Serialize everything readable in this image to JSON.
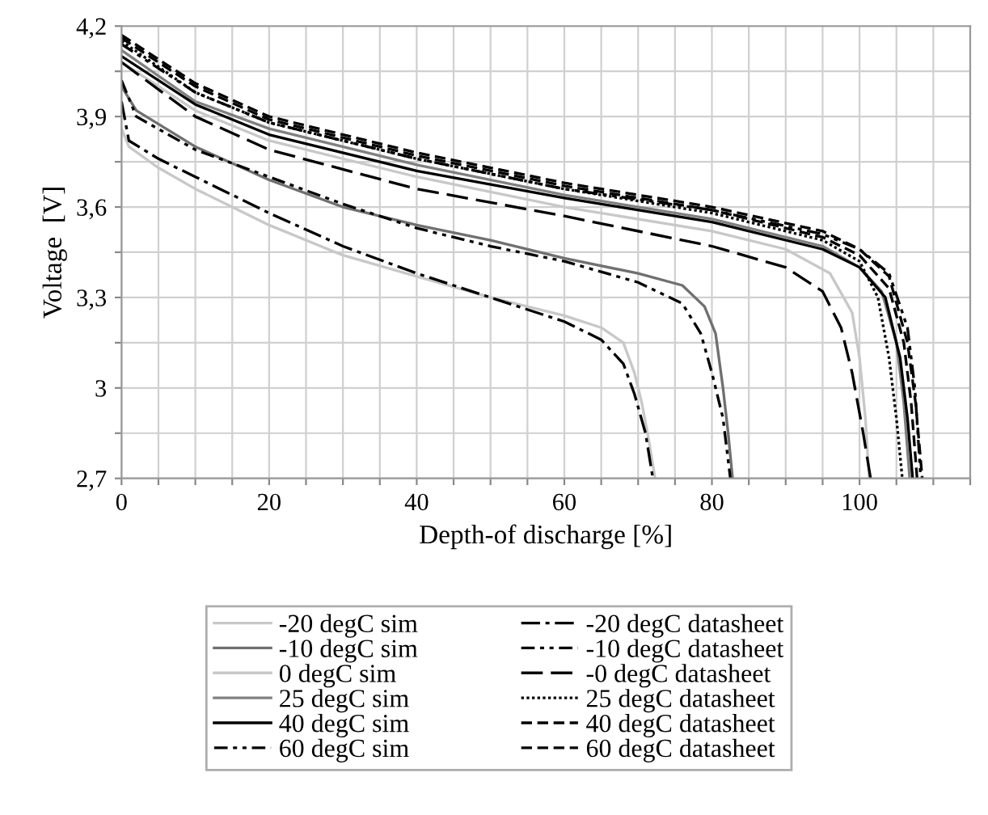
{
  "chart_data": {
    "type": "line",
    "xlabel": "Depth-of discharge [%]",
    "ylabel": "Voltage  [V]",
    "xlim": [
      0,
      115
    ],
    "ylim": [
      2.7,
      4.2
    ],
    "xticks": [
      0,
      {
        "value": 5,
        "label": null
      },
      {
        "value": 10,
        "label": null
      },
      {
        "value": 15,
        "label": null
      },
      20,
      {
        "value": 25,
        "label": null
      },
      {
        "value": 30,
        "label": null
      },
      {
        "value": 35,
        "label": null
      },
      40,
      {
        "value": 45,
        "label": null
      },
      {
        "value": 50,
        "label": null
      },
      {
        "value": 55,
        "label": null
      },
      60,
      {
        "value": 65,
        "label": null
      },
      {
        "value": 70,
        "label": null
      },
      {
        "value": 75,
        "label": null
      },
      80,
      {
        "value": 85,
        "label": null
      },
      {
        "value": 90,
        "label": null
      },
      {
        "value": 95,
        "label": null
      },
      100,
      {
        "value": 105,
        "label": null
      },
      {
        "value": 110,
        "label": null
      },
      {
        "value": 115,
        "label": null
      }
    ],
    "yticks": [
      {
        "value": 2.7,
        "label": "2,7"
      },
      {
        "value": 2.85,
        "label": null
      },
      3,
      {
        "value": 3.15,
        "label": null
      },
      {
        "value": 3.3,
        "label": "3,3"
      },
      {
        "value": 3.45,
        "label": null
      },
      {
        "value": 3.6,
        "label": "3,6"
      },
      {
        "value": 3.75,
        "label": null
      },
      {
        "value": 3.9,
        "label": "3,9"
      },
      {
        "value": 4.05,
        "label": null
      },
      {
        "value": 4.2,
        "label": "4,2"
      }
    ],
    "grid": true,
    "legend": "bottom",
    "marker": "none",
    "series": [
      {
        "name": "-20 degC sim",
        "color": "#c8c8c8",
        "line_style": "solid",
        "x": [
          0,
          1,
          5,
          10,
          20,
          30,
          40,
          50,
          60,
          65,
          68,
          69.5,
          70.5,
          71.5,
          72.3
        ],
        "values": [
          3.86,
          3.8,
          3.73,
          3.66,
          3.54,
          3.44,
          3.37,
          3.3,
          3.24,
          3.2,
          3.15,
          3.05,
          2.95,
          2.82,
          2.7
        ]
      },
      {
        "name": "-10 degC sim",
        "color": "#707070",
        "line_style": "solid",
        "x": [
          0,
          2,
          10,
          20,
          30,
          40,
          50,
          60,
          70,
          76,
          79,
          80.5,
          81.5,
          82.2,
          82.8
        ],
        "values": [
          4.0,
          3.92,
          3.8,
          3.69,
          3.6,
          3.54,
          3.49,
          3.43,
          3.38,
          3.34,
          3.27,
          3.18,
          3.0,
          2.85,
          2.7
        ]
      },
      {
        "name": "0 degC sim",
        "color": "#c8c8c8",
        "line_style": "solid",
        "x": [
          0,
          10,
          20,
          40,
          60,
          80,
          90,
          96,
          99,
          100,
          100.8,
          101.3
        ],
        "values": [
          4.08,
          3.92,
          3.82,
          3.7,
          3.6,
          3.52,
          3.46,
          3.38,
          3.25,
          3.1,
          2.9,
          2.7
        ]
      },
      {
        "name": "25 degC sim",
        "color": "#808080",
        "line_style": "solid",
        "x": [
          0,
          10,
          20,
          40,
          60,
          80,
          95,
          100,
          103,
          105,
          106,
          106.8
        ],
        "values": [
          4.12,
          3.95,
          3.86,
          3.74,
          3.64,
          3.56,
          3.47,
          3.4,
          3.32,
          3.15,
          2.95,
          2.7
        ]
      },
      {
        "name": "40 degC sim",
        "color": "#000000",
        "line_style": "solid",
        "x": [
          0,
          10,
          20,
          40,
          60,
          80,
          95,
          100,
          103.5,
          105.5,
          106.5,
          107.2
        ],
        "values": [
          4.1,
          3.94,
          3.84,
          3.72,
          3.63,
          3.55,
          3.46,
          3.4,
          3.3,
          3.1,
          2.9,
          2.7
        ]
      },
      {
        "name": "60 degC sim",
        "color": "#000000",
        "line_style": "dashdotdot",
        "x": [
          0,
          10,
          20,
          40,
          60,
          80,
          95,
          100,
          104,
          106.5,
          107.5,
          108.3
        ],
        "values": [
          4.14,
          3.98,
          3.88,
          3.76,
          3.66,
          3.59,
          3.51,
          3.46,
          3.38,
          3.2,
          3.0,
          2.7
        ]
      },
      {
        "name": "-20 degC datasheet",
        "color": "#000000",
        "line_style": "dashdot",
        "x": [
          0,
          1,
          5,
          10,
          20,
          30,
          40,
          50,
          60,
          65,
          68,
          69.5,
          71,
          72
        ],
        "values": [
          3.95,
          3.82,
          3.76,
          3.7,
          3.58,
          3.47,
          3.38,
          3.3,
          3.22,
          3.16,
          3.08,
          2.98,
          2.85,
          2.7
        ]
      },
      {
        "name": "-10 degC datasheet",
        "color": "#000000",
        "line_style": "dashdotdot",
        "x": [
          0,
          2,
          10,
          20,
          30,
          40,
          50,
          60,
          70,
          76,
          78.5,
          80,
          81.5,
          82.5
        ],
        "values": [
          4.02,
          3.9,
          3.79,
          3.7,
          3.61,
          3.53,
          3.47,
          3.42,
          3.35,
          3.28,
          3.18,
          3.05,
          2.9,
          2.7
        ]
      },
      {
        "name": "-0 degC datasheet",
        "color": "#000000",
        "line_style": "longdash",
        "x": [
          0,
          10,
          20,
          40,
          60,
          80,
          90,
          95,
          97.5,
          99,
          100.5,
          101.5
        ],
        "values": [
          4.08,
          3.9,
          3.79,
          3.66,
          3.57,
          3.47,
          3.4,
          3.32,
          3.2,
          3.05,
          2.85,
          2.7
        ]
      },
      {
        "name": "25 degC datasheet",
        "color": "#000000",
        "line_style": "dotted",
        "x": [
          0,
          10,
          20,
          40,
          60,
          80,
          95,
          100,
          102.5,
          104,
          105,
          105.8
        ],
        "values": [
          4.15,
          3.98,
          3.88,
          3.76,
          3.66,
          3.58,
          3.49,
          3.42,
          3.3,
          3.1,
          2.9,
          2.7
        ]
      },
      {
        "name": "40 degC datasheet",
        "color": "#000000",
        "line_style": "dashed",
        "x": [
          0,
          10,
          20,
          40,
          60,
          80,
          95,
          100,
          104,
          106,
          107,
          107.8
        ],
        "values": [
          4.16,
          4.0,
          3.89,
          3.77,
          3.67,
          3.59,
          3.5,
          3.44,
          3.33,
          3.15,
          2.95,
          2.7
        ]
      },
      {
        "name": "60 degC datasheet",
        "color": "#000000",
        "line_style": "dashed",
        "x": [
          0,
          10,
          20,
          40,
          60,
          80,
          95,
          100,
          104,
          106.5,
          107.6,
          108.5
        ],
        "values": [
          4.17,
          4.01,
          3.9,
          3.78,
          3.68,
          3.6,
          3.52,
          3.46,
          3.37,
          3.15,
          2.95,
          2.7
        ]
      }
    ]
  }
}
